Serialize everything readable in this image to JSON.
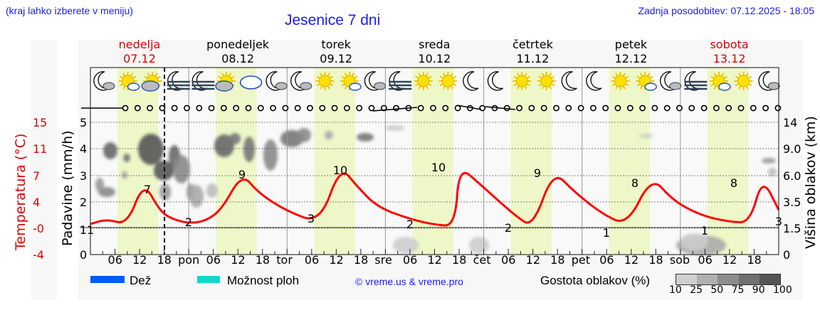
{
  "header": {
    "region_hint": "(kraj lahko izberete v meniju)",
    "title": "Jesenice 7 dni",
    "last_update": "Zadnja posodobitev: 07.12.2025 - 18:05"
  },
  "days": [
    {
      "name": "nedelja",
      "date": "07.12",
      "weekend": true
    },
    {
      "name": "ponedeljek",
      "date": "08.12",
      "weekend": false
    },
    {
      "name": "torek",
      "date": "09.12",
      "weekend": false
    },
    {
      "name": "sreda",
      "date": "10.12",
      "weekend": false
    },
    {
      "name": "četrtek",
      "date": "11.12",
      "weekend": false
    },
    {
      "name": "petek",
      "date": "12.12",
      "weekend": false
    },
    {
      "name": "sobota",
      "date": "13.12",
      "weekend": true
    }
  ],
  "colors": {
    "temperature_line": "#ff0000",
    "daylight_band": "#eef7c8",
    "background": "#f7f7f7",
    "rain": "#005aff",
    "showers": "#11d8c8",
    "accent_text": "#1a1aff",
    "weekend_text": "#e00000"
  },
  "icons": [
    "moon-cloud-icon",
    "sun-small-cloud-icon",
    "cloud-sun-icon",
    "moon-fog-icon",
    "moon-fog-icon",
    "cloud-sun-icon",
    "cloud-icon",
    "moon-cloud-icon",
    "moon-cloud-icon",
    "sun-icon",
    "sun-small-cloud-icon",
    "moon-cloud-icon",
    "moon-fog-icon",
    "sun-icon",
    "sun-icon",
    "moon-icon",
    "moon-icon",
    "sun-icon",
    "sun-icon",
    "moon-icon",
    "moon-icon",
    "sun-icon",
    "sun-small-cloud-icon",
    "moon-cloud-icon",
    "moon-fog-icon",
    "sun-small-cloud-icon",
    "sun-icon",
    "moon-cloud-icon"
  ],
  "legend": {
    "rain_label": "Dež",
    "showers_label": "Možnost ploh",
    "copyright": "© vreme.us & vreme.pro",
    "cloud_density_label": "Gostota oblakov (%)",
    "cloud_density_steps": [
      "10",
      "25",
      "50",
      "75",
      "90",
      "100"
    ],
    "cloud_density_colors": [
      "#d0d0d0",
      "#b0b0b0",
      "#8c8c8c",
      "#707070",
      "#555555"
    ]
  },
  "chart_data": {
    "type": "line",
    "title": "Jesenice 7 dni",
    "xlabel": "",
    "x_tick_labels": [
      "06",
      "12",
      "18",
      "pon",
      "06",
      "12",
      "18",
      "tor",
      "06",
      "12",
      "18",
      "sre",
      "06",
      "12",
      "18",
      "čet",
      "06",
      "12",
      "18",
      "pet",
      "06",
      "12",
      "18",
      "sob",
      "06",
      "12",
      "18"
    ],
    "now_marker": "07.12 18:05",
    "axes": {
      "temperature": {
        "label": "Temperatura (°C)",
        "ticks": [
          "15",
          "11",
          "7",
          "4",
          "-0",
          "-4"
        ]
      },
      "precipitation": {
        "label": "Padavine (mm/h)",
        "ticks": [
          "5",
          "4",
          "3",
          "2",
          "1",
          "0"
        ],
        "ylim": [
          0,
          5
        ]
      },
      "cloud_height": {
        "label": "Višina oblakov (km)",
        "ticks": [
          "14",
          "9.0",
          "6.0",
          "3.5",
          "1.5",
          "0"
        ]
      }
    },
    "series": [
      {
        "name": "Temperatura",
        "unit": "°C",
        "hours": [
          0,
          4,
          9,
          13,
          17,
          20,
          24,
          28,
          32,
          37,
          41,
          48,
          56,
          61,
          65,
          70,
          78,
          84,
          89,
          90,
          95,
          104,
          108,
          113,
          118,
          125,
          131,
          137,
          142,
          149,
          156,
          161,
          164,
          168
        ],
        "values": [
          0.6,
          1.3,
          0.5,
          6.6,
          2.4,
          1.3,
          0.7,
          1.0,
          2.6,
          7.8,
          5.0,
          2.4,
          0.7,
          8.8,
          6.0,
          3.0,
          1.3,
          0.5,
          0.3,
          8.8,
          6.3,
          1.6,
          0.2,
          8.2,
          5.2,
          2.0,
          0.4,
          7.4,
          4.0,
          1.8,
          0.9,
          0.8,
          7.2,
          2.6
        ]
      },
      {
        "name": "Dnevni ekstremi (oznake)",
        "labels": [
          {
            "day": "07.12",
            "max": 7,
            "min": 11
          },
          {
            "day": "08.12",
            "min": 2,
            "max": 9
          },
          {
            "day": "09.12",
            "min": 3,
            "max": 10
          },
          {
            "day": "10.12",
            "min": 2,
            "max": 10
          },
          {
            "day": "11.12",
            "min": 2,
            "max": 9
          },
          {
            "day": "12.12",
            "min": 1,
            "max": 8
          },
          {
            "day": "13.12",
            "min": 1,
            "max": 8,
            "end": 3
          }
        ]
      },
      {
        "name": "Dež",
        "unit": "mm/h",
        "values": [
          0,
          0,
          0,
          0,
          0,
          0,
          0
        ]
      },
      {
        "name": "Možnost ploh",
        "unit": "mm/h",
        "values": [
          0,
          0,
          0,
          0,
          0,
          0,
          0
        ]
      }
    ],
    "legend_position": "bottom",
    "grid": true
  }
}
